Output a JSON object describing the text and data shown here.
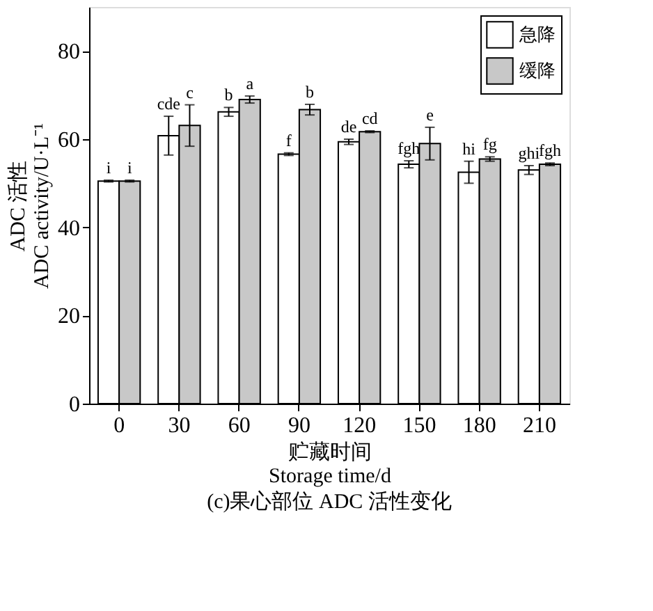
{
  "chart_data": {
    "type": "bar",
    "categories": [
      "0",
      "30",
      "60",
      "90",
      "120",
      "150",
      "180",
      "210"
    ],
    "series": [
      {
        "name": "急降",
        "color": "#ffffff",
        "values": [
          50.5,
          60.8,
          66.2,
          56.6,
          59.4,
          54.3,
          52.5,
          53.0
        ],
        "errors": [
          0.2,
          4.4,
          1.0,
          0.3,
          0.6,
          0.8,
          2.5,
          1.0
        ]
      },
      {
        "name": "缓降",
        "color": "#c8c8c8",
        "values": [
          50.5,
          63.1,
          69.0,
          66.7,
          61.7,
          59.0,
          55.5,
          54.3
        ],
        "errors": [
          0.2,
          4.7,
          0.8,
          1.2,
          0.2,
          3.7,
          0.5,
          0.3
        ]
      }
    ],
    "xlabel": "贮藏时间\nStorage time/d",
    "ylabel": "ADC 活性\nADC activity/U·L⁻¹",
    "ylim": [
      0,
      90
    ],
    "yticks": [
      0,
      20,
      40,
      60,
      80
    ],
    "legend": "top right",
    "grid": false,
    "annotations": [
      {
        "text": "i",
        "x": "0",
        "y": 50.7
      },
      {
        "text": "i",
        "x": "0",
        "y": 50.7
      },
      {
        "text": "cde",
        "x": "30",
        "y": 65.2
      },
      {
        "text": "c",
        "x": "30",
        "y": 67.8
      },
      {
        "text": "b",
        "x": "60",
        "y": 67.2
      },
      {
        "text": "a",
        "x": "60",
        "y": 69.8
      },
      {
        "text": "f",
        "x": "90",
        "y": 56.9
      },
      {
        "text": "b",
        "x": "90",
        "y": 67.9
      },
      {
        "text": "de",
        "x": "120",
        "y": 60.0
      },
      {
        "text": "cd",
        "x": "120",
        "y": 61.9
      },
      {
        "text": "fgh",
        "x": "150",
        "y": 55.1
      },
      {
        "text": "e",
        "x": "150",
        "y": 62.7
      },
      {
        "text": "hi",
        "x": "180",
        "y": 55.0
      },
      {
        "text": "fg",
        "x": "180",
        "y": 56.0
      },
      {
        "text": "ghi",
        "x": "210",
        "y": 54.0
      },
      {
        "text": "fgh",
        "x": "210",
        "y": 54.6
      },
      "(c)果心部位 ADC 活性变化"
    ]
  }
}
